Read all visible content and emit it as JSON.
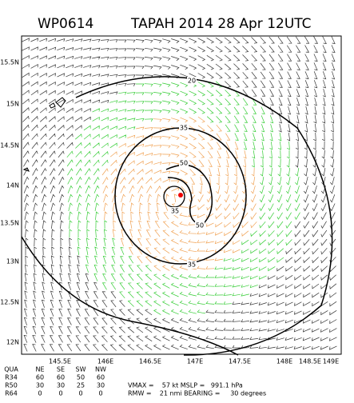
{
  "header": {
    "id": "WP0614",
    "title": "TAPAH 2014 28 Apr 12UTC"
  },
  "map": {
    "lat_labels": [
      "15.5N",
      "15N",
      "14.5N",
      "14N",
      "13.5N",
      "13N",
      "12.5N",
      "12N"
    ],
    "lon_labels": [
      "145.5E",
      "146E",
      "146.5E",
      "147E",
      "147.5E",
      "148E",
      "148.5E",
      "149E"
    ],
    "contour_labels": [
      "20",
      "35",
      "50",
      "35",
      "50",
      "35"
    ]
  },
  "table": {
    "header": [
      "QUA",
      "NE",
      "SE",
      "SW",
      "NW"
    ],
    "rows": [
      [
        "R34",
        60,
        60,
        50,
        60
      ],
      [
        "R50",
        30,
        30,
        25,
        30
      ],
      [
        "R64",
        0,
        0,
        0,
        0
      ]
    ]
  },
  "summary": [
    "VMAX =    57 kt MSLP =   991.1 hPa",
    "RMW =    21 nmi BEARING =     30 degrees"
  ]
}
